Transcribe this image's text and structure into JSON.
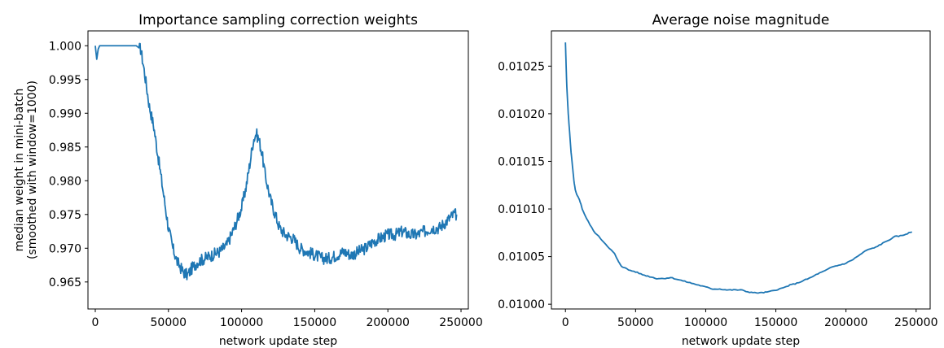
{
  "chart_data": [
    {
      "type": "line",
      "title": "Importance sampling correction weights",
      "xlabel": "network update step",
      "ylabel": [
        "median weight in mini-batch",
        "(smoothed with window=1000)"
      ],
      "xlim": [
        -5000,
        255000
      ],
      "ylim": [
        0.961,
        1.0022
      ],
      "xticks": [
        0,
        50000,
        100000,
        150000,
        200000,
        250000
      ],
      "yticks": [
        0.965,
        0.97,
        0.975,
        0.98,
        0.985,
        0.99,
        0.995,
        1.0
      ],
      "ytick_labels": [
        "0.965",
        "0.970",
        "0.975",
        "0.980",
        "0.985",
        "0.990",
        "0.995",
        "1.000"
      ],
      "color": "#1f77b4",
      "series": [
        {
          "x": [
            0,
            1000,
            2000,
            3000,
            5000,
            10000,
            20000,
            28000,
            31000,
            33000,
            35000,
            37000,
            40000,
            42000,
            44000,
            46000,
            48000,
            50000,
            53000,
            56000,
            60000,
            63000,
            66000,
            70000,
            75000,
            80000,
            85000,
            90000,
            95000,
            100000,
            103000,
            106000,
            108000,
            110000,
            112000,
            114000,
            116000,
            118000,
            120000,
            123000,
            126000,
            130000,
            135000,
            140000,
            145000,
            150000,
            155000,
            160000,
            165000,
            170000,
            175000,
            180000,
            185000,
            190000,
            195000,
            200000,
            205000,
            210000,
            215000,
            220000,
            225000,
            230000,
            235000,
            240000,
            245000,
            247000
          ],
          "y": [
            1.0,
            0.998,
            0.9995,
            1.0,
            1.0,
            1.0,
            1.0,
            1.0,
            0.9995,
            0.997,
            0.994,
            0.991,
            0.988,
            0.985,
            0.982,
            0.979,
            0.976,
            0.973,
            0.97,
            0.968,
            0.9665,
            0.966,
            0.967,
            0.968,
            0.9685,
            0.969,
            0.9695,
            0.9705,
            0.973,
            0.976,
            0.979,
            0.983,
            0.986,
            0.987,
            0.986,
            0.984,
            0.981,
            0.979,
            0.977,
            0.975,
            0.973,
            0.972,
            0.9715,
            0.97,
            0.9695,
            0.969,
            0.9685,
            0.9685,
            0.969,
            0.9695,
            0.969,
            0.9695,
            0.97,
            0.971,
            0.9715,
            0.972,
            0.972,
            0.9725,
            0.972,
            0.972,
            0.9725,
            0.973,
            0.973,
            0.974,
            0.975,
            0.975
          ],
          "noise": 0.0009
        }
      ]
    },
    {
      "type": "line",
      "title": "Average noise magnitude",
      "xlabel": "network update step",
      "ylabel": "",
      "xlim": [
        -10000,
        260000
      ],
      "ylim": [
        0.009995,
        0.010287
      ],
      "xticks": [
        0,
        50000,
        100000,
        150000,
        200000,
        250000
      ],
      "yticks": [
        0.01,
        0.01005,
        0.0101,
        0.01015,
        0.0102,
        0.01025
      ],
      "ytick_labels": [
        "0.01000",
        "0.01005",
        "0.01010",
        "0.01015",
        "0.01020",
        "0.01025"
      ],
      "color": "#1f77b4",
      "series": [
        {
          "x": [
            0,
            500,
            1000,
            2000,
            3000,
            4000,
            5000,
            6000,
            7000,
            8000,
            10000,
            12000,
            15000,
            20000,
            25000,
            30000,
            35000,
            38000,
            40000,
            45000,
            50000,
            55000,
            60000,
            65000,
            70000,
            75000,
            80000,
            85000,
            90000,
            95000,
            100000,
            105000,
            110000,
            115000,
            120000,
            125000,
            130000,
            135000,
            140000,
            145000,
            150000,
            155000,
            160000,
            165000,
            170000,
            175000,
            180000,
            185000,
            190000,
            195000,
            200000,
            205000,
            210000,
            215000,
            220000,
            225000,
            230000,
            235000,
            240000,
            245000,
            247000
          ],
          "y": [
            0.010275,
            0.01025,
            0.010228,
            0.0102,
            0.01018,
            0.01016,
            0.010145,
            0.01013,
            0.01012,
            0.010115,
            0.01011,
            0.0101,
            0.01009,
            0.010077,
            0.010069,
            0.010061,
            0.010053,
            0.010044,
            0.01004,
            0.010036,
            0.010034,
            0.010031,
            0.010029,
            0.010027,
            0.010027,
            0.010028,
            0.010026,
            0.010024,
            0.010022,
            0.01002,
            0.010018,
            0.010016,
            0.010016,
            0.010015,
            0.010015,
            0.010015,
            0.010013,
            0.010012,
            0.010012,
            0.010013,
            0.010015,
            0.010017,
            0.01002,
            0.010022,
            0.010025,
            0.010028,
            0.010032,
            0.010035,
            0.010039,
            0.010041,
            0.010043,
            0.010047,
            0.010052,
            0.010057,
            0.010059,
            0.010063,
            0.010067,
            0.010071,
            0.010072,
            0.010075,
            0.010076
          ],
          "noise": 5e-07
        }
      ]
    }
  ]
}
